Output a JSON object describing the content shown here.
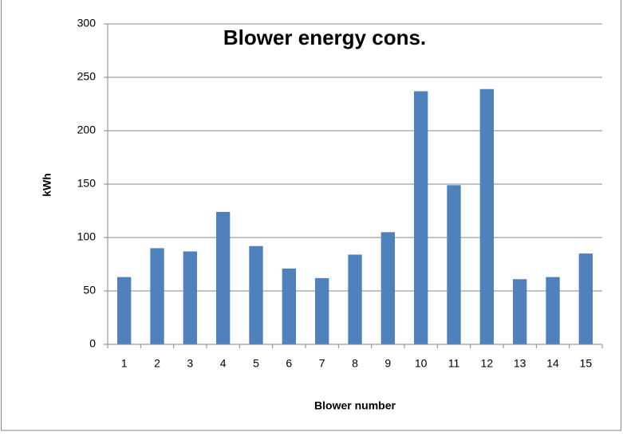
{
  "chart_data": {
    "type": "bar",
    "title": "Blower energy cons.",
    "x_label": "Blower number",
    "y_label": "kWh",
    "categories": [
      "1",
      "2",
      "3",
      "4",
      "5",
      "6",
      "7",
      "8",
      "9",
      "10",
      "11",
      "12",
      "13",
      "14",
      "15"
    ],
    "values": [
      63,
      90,
      87,
      124,
      92,
      71,
      62,
      84,
      105,
      237,
      149,
      239,
      61,
      63,
      85
    ],
    "color": "#4f81bd",
    "ylim": [
      0,
      300
    ],
    "yticks": [
      0,
      50,
      100,
      150,
      200,
      250,
      300
    ],
    "grid": true
  }
}
